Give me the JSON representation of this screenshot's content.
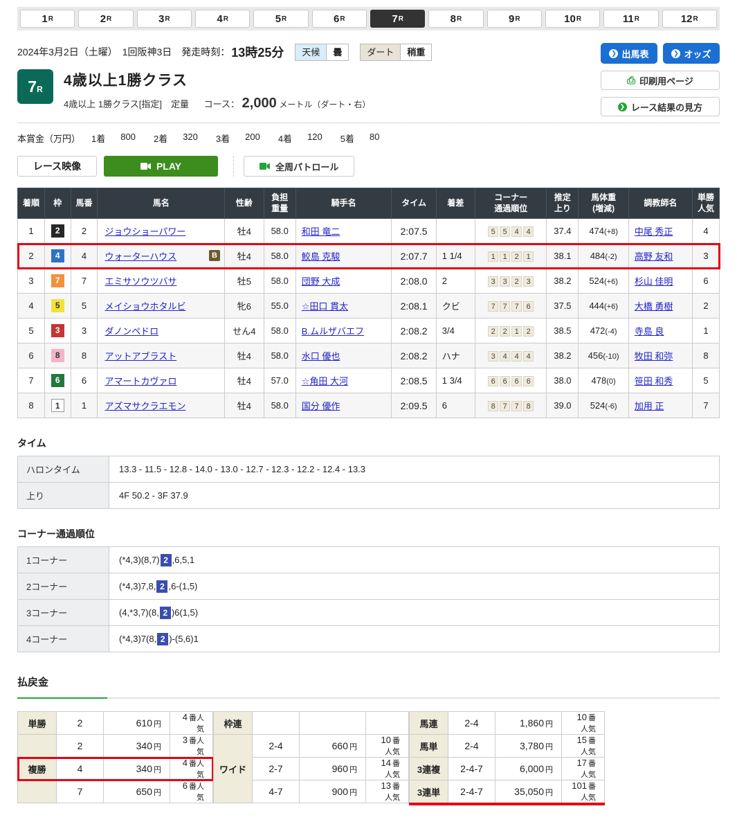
{
  "colors": {
    "accent_blue": "#1b6fd2",
    "play_green": "#3c8c1e",
    "badge_teal": "#0b6a57",
    "link_blue": "#2222cc",
    "highlight_red": "#e60012",
    "corner_hl_blue": "#3b4eae",
    "header_dark": "#343c43",
    "payout_label_bg": "#efecdb",
    "tab_active_bg": "#333333",
    "green_accent": "#27a23c"
  },
  "tabs": {
    "active": "7R",
    "items": [
      "1R",
      "2R",
      "3R",
      "4R",
      "5R",
      "6R",
      "7R",
      "8R",
      "9R",
      "10R",
      "11R",
      "12R"
    ]
  },
  "header": {
    "date_line": "2024年3月2日（土曜）　1回阪神3日",
    "start_label": "発走時刻：",
    "start_time": "13時25分",
    "weather": {
      "label": "天候",
      "value": "曇"
    },
    "track": {
      "label": "ダート",
      "value": "稍重"
    },
    "buttons": {
      "entry": "出馬表",
      "odds": "オッズ",
      "print": "印刷用ページ",
      "guide": "レース結果の見方"
    }
  },
  "race": {
    "number": "7",
    "number_suffix": "R",
    "title": "4歳以上1勝クラス",
    "conditions": "4歳以上 1勝クラス[指定]　定量",
    "course_label": "コース：",
    "course_value": "2,000",
    "course_unit": "メートル（ダート・右）",
    "prize_label": "本賞金（万円）",
    "prize": [
      {
        "rank": "1着",
        "amount": "800"
      },
      {
        "rank": "2着",
        "amount": "320"
      },
      {
        "rank": "3着",
        "amount": "200"
      },
      {
        "rank": "4着",
        "amount": "120"
      },
      {
        "rank": "5着",
        "amount": "80"
      }
    ]
  },
  "video": {
    "race_video_label": "レース映像",
    "play_label": "PLAY",
    "patrol_label": "全周パトロール"
  },
  "waku_colors": {
    "1": {
      "bg": "#ffffff",
      "fg": "#333333",
      "border": "#999999"
    },
    "2": {
      "bg": "#272727",
      "fg": "#ffffff",
      "border": ""
    },
    "3": {
      "bg": "#c73434",
      "fg": "#ffffff",
      "border": ""
    },
    "4": {
      "bg": "#2e72c8",
      "fg": "#ffffff",
      "border": ""
    },
    "5": {
      "bg": "#f2e23c",
      "fg": "#333333",
      "border": ""
    },
    "6": {
      "bg": "#22783c",
      "fg": "#ffffff",
      "border": ""
    },
    "7": {
      "bg": "#f0923e",
      "fg": "#ffffff",
      "border": ""
    },
    "8": {
      "bg": "#f3b3c8",
      "fg": "#333333",
      "border": ""
    }
  },
  "results": {
    "headers": [
      "着順",
      "枠",
      "馬番",
      "馬名",
      "性齢",
      "負担\n重量",
      "騎手名",
      "タイム",
      "着差",
      "コーナー\n通過順位",
      "推定\n上り",
      "馬体重\n(増減)",
      "調教師名",
      "単勝\n人気"
    ],
    "rows": [
      {
        "rank": "1",
        "waku": "2",
        "num": "2",
        "name": "ジョウショーパワー",
        "badge": "",
        "sexage": "牡4",
        "weight": "58.0",
        "jockey": "和田 竜二",
        "time": "2:07.5",
        "margin": "",
        "corners": [
          "5",
          "5",
          "4",
          "4"
        ],
        "last3f": "37.4",
        "bw": "474",
        "bwd": "(+8)",
        "trainer": "中尾 秀正",
        "pop": "4",
        "highlight": false
      },
      {
        "rank": "2",
        "waku": "4",
        "num": "4",
        "name": "ウォーターハウス",
        "badge": "B",
        "sexage": "牡4",
        "weight": "58.0",
        "jockey": "鮫島 克駿",
        "time": "2:07.7",
        "margin": "1 1/4",
        "corners": [
          "1",
          "1",
          "2",
          "1"
        ],
        "last3f": "38.1",
        "bw": "484",
        "bwd": "(-2)",
        "trainer": "高野 友和",
        "pop": "3",
        "highlight": true
      },
      {
        "rank": "3",
        "waku": "7",
        "num": "7",
        "name": "エミサソウツバサ",
        "badge": "",
        "sexage": "牡5",
        "weight": "58.0",
        "jockey": "団野 大成",
        "time": "2:08.0",
        "margin": "2",
        "corners": [
          "3",
          "3",
          "2",
          "3"
        ],
        "last3f": "38.2",
        "bw": "524",
        "bwd": "(+6)",
        "trainer": "杉山 佳明",
        "pop": "6",
        "highlight": false
      },
      {
        "rank": "4",
        "waku": "5",
        "num": "5",
        "name": "メイショウホタルビ",
        "badge": "",
        "sexage": "牝6",
        "weight": "55.0",
        "jockey": "☆田口 貫太",
        "time": "2:08.1",
        "margin": "クビ",
        "corners": [
          "7",
          "7",
          "7",
          "6"
        ],
        "last3f": "37.5",
        "bw": "444",
        "bwd": "(+6)",
        "trainer": "大橋 勇樹",
        "pop": "2",
        "highlight": false
      },
      {
        "rank": "5",
        "waku": "3",
        "num": "3",
        "name": "ダノンペドロ",
        "badge": "",
        "sexage": "せん4",
        "weight": "58.0",
        "jockey": "B.ムルザバエフ",
        "time": "2:08.2",
        "margin": "3/4",
        "corners": [
          "2",
          "2",
          "1",
          "2"
        ],
        "last3f": "38.5",
        "bw": "472",
        "bwd": "(-4)",
        "trainer": "寺島 良",
        "pop": "1",
        "highlight": false
      },
      {
        "rank": "6",
        "waku": "8",
        "num": "8",
        "name": "アットアブラスト",
        "badge": "",
        "sexage": "牡4",
        "weight": "58.0",
        "jockey": "水口 優也",
        "time": "2:08.2",
        "margin": "ハナ",
        "corners": [
          "3",
          "4",
          "4",
          "4"
        ],
        "last3f": "38.2",
        "bw": "456",
        "bwd": "(-10)",
        "trainer": "牧田 和弥",
        "pop": "8",
        "highlight": false
      },
      {
        "rank": "7",
        "waku": "6",
        "num": "6",
        "name": "アマートカヴァロ",
        "badge": "",
        "sexage": "牡4",
        "weight": "57.0",
        "jockey": "☆角田 大河",
        "time": "2:08.5",
        "margin": "1 3/4",
        "corners": [
          "6",
          "6",
          "6",
          "6"
        ],
        "last3f": "38.0",
        "bw": "478",
        "bwd": "(0)",
        "trainer": "笹田 和秀",
        "pop": "5",
        "highlight": false
      },
      {
        "rank": "8",
        "waku": "1",
        "num": "1",
        "name": "アズマサクラエモン",
        "badge": "",
        "sexage": "牡4",
        "weight": "58.0",
        "jockey": "国分 優作",
        "time": "2:09.5",
        "margin": "6",
        "corners": [
          "8",
          "7",
          "7",
          "8"
        ],
        "last3f": "39.0",
        "bw": "524",
        "bwd": "(-6)",
        "trainer": "加用 正",
        "pop": "7",
        "highlight": false
      }
    ]
  },
  "time_section": {
    "title": "タイム",
    "rows": [
      {
        "label": "ハロンタイム",
        "value": "13.3 - 11.5 - 12.8 - 14.0 - 13.0 - 12.7 - 12.3 - 12.2 - 12.4 - 13.3"
      },
      {
        "label": "上り",
        "value": "4F 50.2 - 3F 37.9"
      }
    ]
  },
  "corner_section": {
    "title": "コーナー通過順位",
    "rows": [
      {
        "label": "1コーナー",
        "pre": "(*4,3)(8,7)",
        "hl": "2",
        "post": ",6,5,1"
      },
      {
        "label": "2コーナー",
        "pre": "(*4,3)7,8,",
        "hl": "2",
        "post": ",6-(1,5)"
      },
      {
        "label": "3コーナー",
        "pre": "(4,*3,7)(8,",
        "hl": "2",
        "post": ")6(1,5)"
      },
      {
        "label": "4コーナー",
        "pre": "(*4,3)7(8,",
        "hl": "2",
        "post": ")-(5,6)1"
      }
    ]
  },
  "payout": {
    "title": "払戻金",
    "unit_yen": "円",
    "unit_pop": "番人気",
    "columns": [
      [
        {
          "label": "単勝",
          "rows": [
            {
              "comb": "2",
              "amount": "610",
              "pop": "4"
            }
          ]
        },
        {
          "label": "複勝",
          "rows": [
            {
              "comb": "2",
              "amount": "340",
              "pop": "3"
            },
            {
              "comb": "4",
              "amount": "340",
              "pop": "4",
              "highlight": true
            },
            {
              "comb": "7",
              "amount": "650",
              "pop": "6"
            }
          ]
        }
      ],
      [
        {
          "label": "枠連",
          "rows": [
            {
              "comb": "",
              "amount": "",
              "pop": ""
            }
          ]
        },
        {
          "label": "ワイド",
          "rows": [
            {
              "comb": "2-4",
              "amount": "660",
              "pop": "10"
            },
            {
              "comb": "2-7",
              "amount": "960",
              "pop": "14"
            },
            {
              "comb": "4-7",
              "amount": "900",
              "pop": "13"
            }
          ]
        }
      ],
      [
        {
          "label": "馬連",
          "rows": [
            {
              "comb": "2-4",
              "amount": "1,860",
              "pop": "10"
            }
          ]
        },
        {
          "label": "馬単",
          "rows": [
            {
              "comb": "2-4",
              "amount": "3,780",
              "pop": "15"
            }
          ]
        },
        {
          "label": "3連複",
          "rows": [
            {
              "comb": "2-4-7",
              "amount": "6,000",
              "pop": "17"
            }
          ]
        },
        {
          "label": "3連単",
          "rows": [
            {
              "comb": "2-4-7",
              "amount": "35,050",
              "pop": "101",
              "underline": true
            }
          ]
        }
      ]
    ]
  }
}
